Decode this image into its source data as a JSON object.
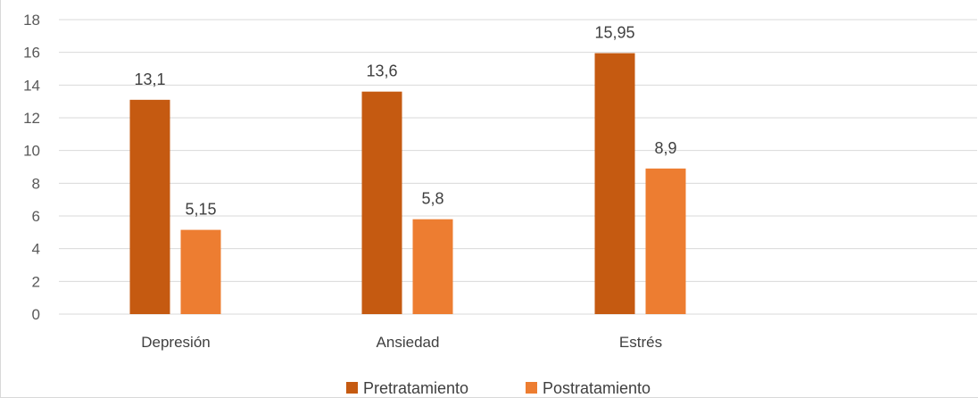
{
  "chart_data": {
    "type": "bar",
    "title": "",
    "xlabel": "",
    "ylabel": "",
    "categories": [
      "Depresión",
      "Ansiedad",
      "Estrés"
    ],
    "series": [
      {
        "name": "Pretratamiento",
        "values": [
          13.1,
          13.6,
          15.95
        ],
        "labels": [
          "13,1",
          "13,6",
          "15,95"
        ],
        "color": "#c55a11"
      },
      {
        "name": "Postratamiento",
        "values": [
          5.15,
          5.8,
          8.9
        ],
        "labels": [
          "5,15",
          "5,8",
          "8,9"
        ],
        "color": "#ed7d31"
      }
    ],
    "ylim": [
      0,
      18
    ],
    "yticks": [
      "0",
      "2",
      "4",
      "6",
      "8",
      "10",
      "12",
      "14",
      "16",
      "18"
    ],
    "grid": true,
    "legend_position": "bottom"
  }
}
